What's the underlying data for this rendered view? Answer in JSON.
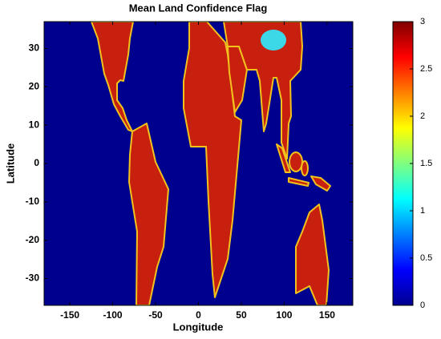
{
  "chart_data": {
    "type": "heatmap",
    "title": "Mean Land Confidence Flag",
    "xlabel": "Longitude",
    "ylabel": "Latitude",
    "xlim": [
      -180,
      180
    ],
    "xticks": [
      -150,
      -100,
      -50,
      0,
      50,
      100,
      150
    ],
    "ylim": [
      -37,
      37
    ],
    "yticks": [
      -30,
      -20,
      -10,
      0,
      10,
      20,
      30
    ],
    "colormap": "jet",
    "clim": [
      0,
      3
    ],
    "cticks": [
      0,
      0.5,
      1,
      1.5,
      2,
      2.5,
      3
    ]
  }
}
